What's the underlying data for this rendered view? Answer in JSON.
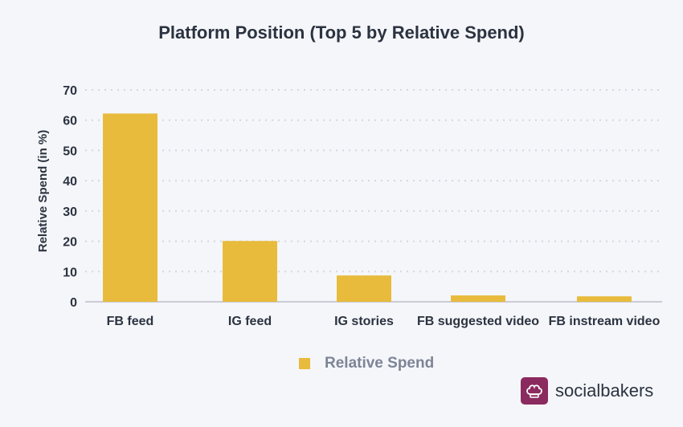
{
  "chart_data": {
    "type": "bar",
    "title": "Platform Position (Top 5 by Relative Spend)",
    "ylabel": "Relative Spend (in %)",
    "xlabel": "",
    "categories": [
      "FB feed",
      "IG feed",
      "IG stories",
      "FB suggested video",
      "FB instream video"
    ],
    "series": [
      {
        "name": "Relative Spend",
        "values": [
          62.2,
          20.1,
          8.7,
          2.1,
          1.8
        ]
      }
    ],
    "ylim": [
      0,
      70
    ],
    "yticks": [
      "0",
      "10",
      "20",
      "30",
      "40",
      "50",
      "60",
      "70"
    ],
    "grid": true,
    "legend_position": "bottom-center",
    "colors": {
      "bar": "#e8bb3c",
      "grid": "#d4d7de",
      "background": "#f5f6fa"
    }
  },
  "legend": {
    "label": "Relative Spend"
  },
  "brand": {
    "name": "socialbakers",
    "icon": "chef-hat-icon",
    "color": "#8b2a5e"
  }
}
